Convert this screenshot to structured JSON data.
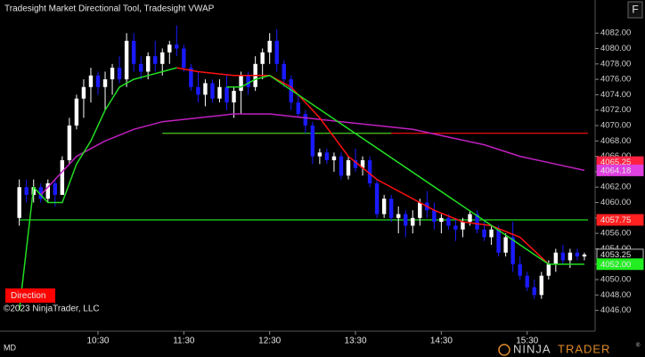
{
  "chart_data": {
    "type": "candlestick",
    "title": "Tradesight Market Directional Tool, Tradesight VWAP",
    "button": "F",
    "copyright": "©2023 NinjaTrader, LLC",
    "indicator_label": "Direction",
    "mode": "MD",
    "logo": [
      "NINJA",
      "TRADER",
      "®"
    ],
    "categories": [
      null,
      null,
      null,
      null,
      null,
      null,
      null,
      null,
      null,
      null,
      null,
      "10:30",
      null,
      null,
      null,
      null,
      null,
      null,
      null,
      null,
      null,
      null,
      null,
      "11:30",
      null,
      null,
      null,
      null,
      null,
      null,
      null,
      null,
      null,
      null,
      null,
      "12:30",
      null,
      null,
      null,
      null,
      null,
      null,
      null,
      null,
      null,
      null,
      null,
      "13:30",
      null,
      null,
      null,
      null,
      null,
      null,
      null,
      null,
      null,
      null,
      null,
      "14:30",
      null,
      null,
      null,
      null,
      null,
      null,
      null,
      null,
      null,
      null,
      null,
      "15:30",
      null,
      null,
      null,
      null,
      null,
      null,
      null,
      null
    ],
    "open": [
      4058,
      4062,
      4061,
      4062,
      4060.5,
      4062.5,
      4061,
      4065.5,
      4070,
      4073.5,
      4075,
      4076.5,
      4075,
      4076,
      4077.5,
      4076,
      4081,
      4078,
      4077,
      4079,
      4078,
      4079.5,
      4080.5,
      4080,
      4077.5,
      4075,
      4074,
      4075.5,
      4073.5,
      4075,
      4073,
      4074.5,
      4076.5,
      4075,
      4078,
      4079.5,
      4081,
      4078,
      4076,
      4073,
      4071.5,
      4070,
      4066,
      4066.5,
      4065.5,
      4066,
      4063.5,
      4065.5,
      4064.5,
      4065.5,
      4062.5,
      4058.5,
      4060.5,
      4058,
      4058.5,
      4057,
      4058,
      4060,
      4059,
      4057.5,
      4058,
      4057,
      4056.5,
      4057.5,
      4058.5,
      4056.5,
      4055.5,
      4056.5,
      4053.5,
      4055.5,
      4052,
      4050.5,
      4049,
      4048,
      4050.5,
      4052,
      4053.5,
      4052.5,
      4053.5,
      4053
    ],
    "high": [
      4063,
      4063,
      4063,
      4062.5,
      4063,
      4063,
      4066,
      4071,
      4074,
      4076,
      4077.5,
      4077,
      4077,
      4078,
      4079,
      4082,
      4082,
      4079,
      4079.5,
      4081,
      4080,
      4081,
      4083,
      4080.5,
      4078,
      4077,
      4076,
      4076,
      4076,
      4076.5,
      4075,
      4077,
      4077,
      4079,
      4080,
      4082,
      4082.5,
      4078.5,
      4076.5,
      4074,
      4072,
      4070.5,
      4067,
      4067,
      4066.5,
      4066.5,
      4066,
      4067,
      4066,
      4066,
      4063,
      4061,
      4061,
      4059.5,
      4059,
      4059,
      4060.5,
      4061.5,
      4060,
      4058.5,
      4058.5,
      4058,
      4058,
      4059,
      4059,
      4057.5,
      4057,
      4057,
      4056,
      4057.5,
      4053,
      4051,
      4050,
      4051,
      4052.5,
      4054,
      4054.5,
      4054,
      4054,
      4053.5
    ],
    "low": [
      4057,
      4060,
      4060,
      4060,
      4060,
      4059.5,
      4061,
      4065,
      4069.5,
      4071,
      4073,
      4074,
      4072,
      4074,
      4075.5,
      4075,
      4077,
      4076,
      4076,
      4077,
      4076.5,
      4078,
      4079,
      4077,
      4074.5,
      4073,
      4072.5,
      4073,
      4073,
      4072,
      4071,
      4071.5,
      4074,
      4074.5,
      4076,
      4078,
      4077,
      4075,
      4072,
      4071,
      4069,
      4065,
      4065,
      4065,
      4064,
      4063,
      4063,
      4064,
      4063.5,
      4062,
      4058,
      4058,
      4057.5,
      4056,
      4055.5,
      4056,
      4057,
      4058,
      4056.5,
      4056,
      4056.5,
      4055,
      4055.5,
      4057,
      4056,
      4055,
      4054.5,
      4053,
      4053,
      4051,
      4050,
      4048.5,
      4047.5,
      4047.5,
      4050,
      4051,
      4052,
      4051.5,
      4052.5,
      4052.5
    ],
    "close": [
      4062,
      4061,
      4062,
      4060.5,
      4062.5,
      4061,
      4065.5,
      4070,
      4073.5,
      4075,
      4076.5,
      4075,
      4076,
      4077.5,
      4076,
      4081,
      4078,
      4077,
      4079,
      4078,
      4079.5,
      4080.5,
      4080,
      4077.5,
      4075,
      4074,
      4075.5,
      4073.5,
      4075,
      4073,
      4074.5,
      4076.5,
      4075,
      4078,
      4079.5,
      4081,
      4078,
      4076,
      4073,
      4071.5,
      4070,
      4066,
      4066.5,
      4065.5,
      4066,
      4063.5,
      4065.5,
      4064.5,
      4065.5,
      4062.5,
      4058.5,
      4060.5,
      4058,
      4058.5,
      4057,
      4058,
      4060,
      4059,
      4057.5,
      4058,
      4057,
      4056.5,
      4057.5,
      4058.5,
      4056.5,
      4055.5,
      4056.5,
      4053.5,
      4055.5,
      4052,
      4050.5,
      4049,
      4048,
      4050.5,
      4052,
      4053.5,
      4052.5,
      4053.5,
      4053,
      4053.25
    ],
    "up_color": "#ffffff",
    "down_color": "#1a1aff",
    "lines": [
      {
        "color": "#c020c0",
        "x": [
          3,
          8,
          12,
          16,
          20,
          25,
          30,
          35,
          40,
          45,
          50,
          55,
          60,
          65,
          70,
          75,
          79
        ],
        "values": [
          4061,
          4066,
          4068,
          4069.5,
          4070.5,
          4071,
          4071.5,
          4071.5,
          4071,
          4070.5,
          4070,
          4069.5,
          4068.5,
          4067.5,
          4066,
          4065,
          4064.18
        ]
      },
      {
        "color": "#ff1010",
        "x": [
          22,
          25,
          30,
          35,
          38,
          42,
          46,
          50,
          54,
          58,
          62,
          66,
          70,
          74
        ],
        "values": [
          4077.5,
          4077,
          4076.5,
          4076.5,
          4075,
          4071,
          4066,
          4063,
          4061,
          4059,
          4057.5,
          4057,
          4055.5,
          4052
        ]
      },
      {
        "color": "#22dd22",
        "x": [
          0,
          2,
          4,
          6,
          8,
          10,
          12,
          14,
          16,
          18,
          20,
          22,
          26,
          29,
          31,
          33,
          35,
          74,
          77,
          79
        ],
        "values": [
          4046,
          4062,
          4060,
          4060,
          4065,
          4068,
          4072,
          4075,
          4076,
          4076.5,
          4077,
          4077.5,
          null,
          4075,
          4075,
          4076,
          4076.5,
          4052,
          4052,
          4052
        ]
      }
    ],
    "levels": [
      {
        "value": 4069,
        "color": "#ff1010",
        "from": 20,
        "to": 79.5
      },
      {
        "value": 4069,
        "color": "#22dd22",
        "from": 20,
        "to": 52
      },
      {
        "value": 4057.75,
        "color": "#22dd22",
        "from": 0,
        "to": 79.5
      }
    ],
    "markers": [
      {
        "value": 4065.25,
        "label": "4065.25",
        "color": "#ff2040",
        "text_color": "#000000"
      },
      {
        "value": 4064.18,
        "label": "4064.18",
        "color": "#e040e0",
        "text_color": "#000000"
      },
      {
        "value": 4057.75,
        "label": "4057.75",
        "color": "#ff2020",
        "text_color": "#ffffff"
      },
      {
        "value": 4053.25,
        "label": "4053.25",
        "color": "#000000",
        "text_color": "#ffffff"
      },
      {
        "value": 4052.0,
        "label": "4052.00",
        "color": "#22ee22",
        "text_color": "#000000"
      }
    ],
    "xlim": [
      -2.7,
      80.5
    ],
    "ylim": [
      4043.3,
      4086.3
    ],
    "yticks": [
      {
        "value": 4046,
        "label": "4046.00"
      },
      {
        "value": 4048,
        "label": "4048.00"
      },
      {
        "value": 4050,
        "label": "4050.00"
      },
      {
        "value": 4052,
        "label": "4052.00"
      },
      {
        "value": 4054,
        "label": "4054.00"
      },
      {
        "value": 4056,
        "label": "4056.00"
      },
      {
        "value": 4058,
        "label": "4058.00"
      },
      {
        "value": 4060,
        "label": "4060.00"
      },
      {
        "value": 4062,
        "label": "4062.00"
      },
      {
        "value": 4064,
        "label": "4064.00"
      },
      {
        "value": 4066,
        "label": "4066.00"
      },
      {
        "value": 4068,
        "label": "4068.00"
      },
      {
        "value": 4070,
        "label": "4070.00"
      },
      {
        "value": 4072,
        "label": "4072.00"
      },
      {
        "value": 4074,
        "label": "4074.00"
      },
      {
        "value": 4076,
        "label": "4076.00"
      },
      {
        "value": 4078,
        "label": "4078.00"
      },
      {
        "value": 4080,
        "label": "4080.00"
      },
      {
        "value": 4082,
        "label": "4082.00"
      }
    ]
  }
}
